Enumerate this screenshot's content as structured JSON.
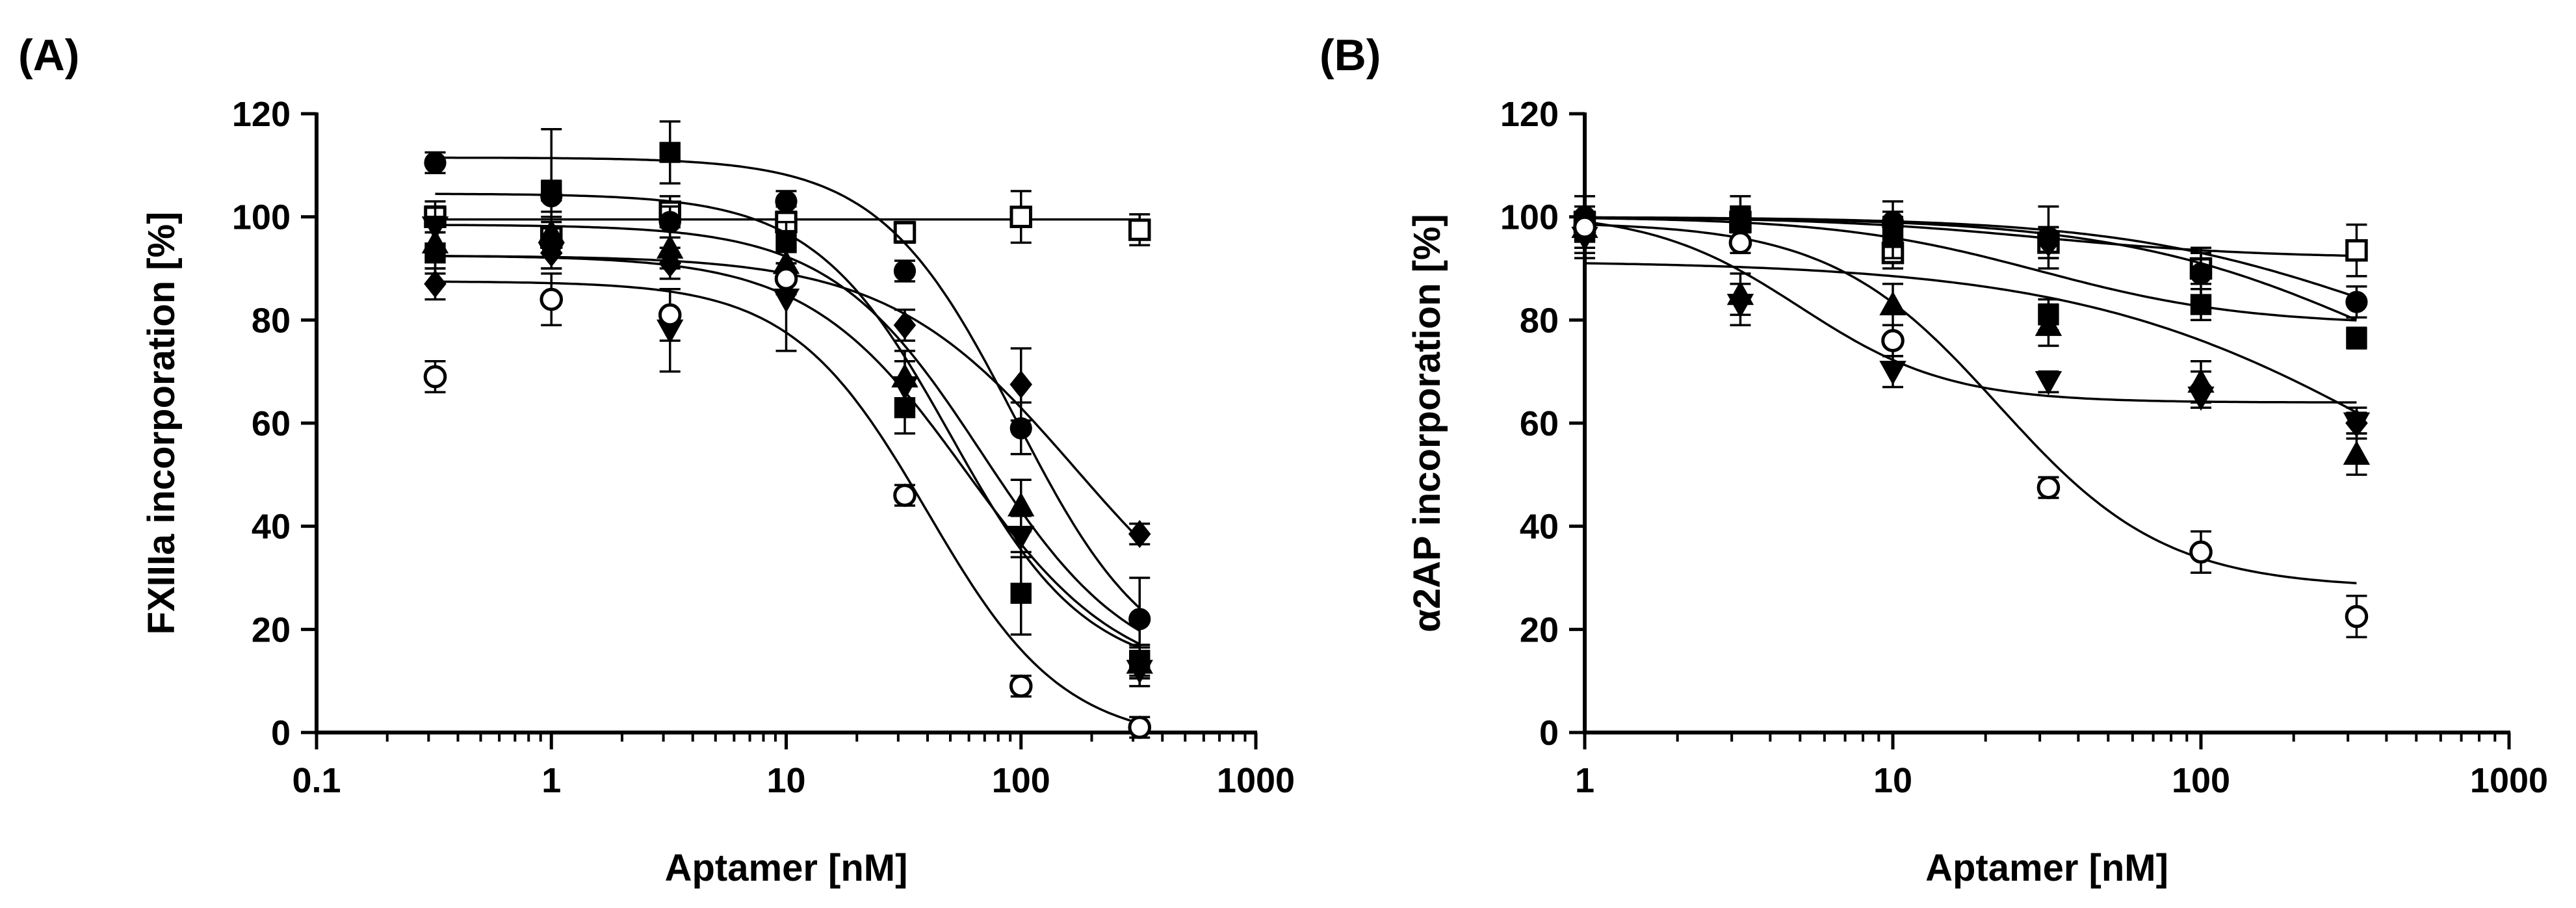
{
  "chart_data": [
    {
      "type": "scatter",
      "panel_label": "(A)",
      "xlabel": "Aptamer [nM]",
      "ylabel": "FXIIIa incorporation  [%]",
      "xscale": "log",
      "xlim": [
        0.1,
        1000
      ],
      "ylim": [
        0,
        120
      ],
      "xticks": [
        0.1,
        1,
        10,
        100,
        1000
      ],
      "xtick_labels": [
        "0.1",
        "1",
        "10",
        "100",
        "1000"
      ],
      "yticks": [
        0,
        20,
        40,
        60,
        80,
        100,
        120
      ],
      "ytick_labels": [
        "0",
        "20",
        "40",
        "60",
        "80",
        "100",
        "120"
      ],
      "series": [
        {
          "name": "open-square",
          "marker": "square-open",
          "points": [
            [
              0.32,
              100,
              3
            ],
            [
              1,
              96,
              3
            ],
            [
              3.2,
              101,
              3
            ],
            [
              10,
              99,
              3
            ],
            [
              32,
              97,
              2
            ],
            [
              100,
              100,
              5
            ],
            [
              320,
              97.5,
              3
            ]
          ],
          "fit": {
            "top": 99.5,
            "bottom": 99.5,
            "ic50": 50,
            "hill": 1
          }
        },
        {
          "name": "filled-circle",
          "marker": "circle-filled",
          "points": [
            [
              0.32,
              110.5,
              2
            ],
            [
              1,
              104,
              3
            ],
            [
              3.2,
              99,
              3
            ],
            [
              10,
              103,
              2
            ],
            [
              32,
              89.5,
              2
            ],
            [
              100,
              59,
              5
            ],
            [
              320,
              22,
              8
            ]
          ],
          "fit": {
            "top": 111.5,
            "bottom": 10,
            "ic50": 95,
            "hill": 1.5
          }
        },
        {
          "name": "filled-square",
          "marker": "square-filled",
          "points": [
            [
              0.32,
              93,
              4
            ],
            [
              1,
              105,
              12
            ],
            [
              3.2,
              112.5,
              6
            ],
            [
              10,
              95,
              4
            ],
            [
              32,
              63,
              5
            ],
            [
              100,
              27,
              8
            ],
            [
              320,
              14,
              3
            ]
          ],
          "fit": {
            "top": 104.5,
            "bottom": 11,
            "ic50": 50,
            "hill": 1.5
          }
        },
        {
          "name": "filled-diamond",
          "marker": "diamond-filled",
          "points": [
            [
              0.32,
              87,
              3
            ],
            [
              1,
              93,
              3
            ],
            [
              3.2,
              91,
              3
            ],
            [
              10,
              88,
              3
            ],
            [
              32,
              79,
              3
            ],
            [
              100,
              67.5,
              7
            ],
            [
              320,
              38.5,
              2
            ]
          ],
          "fit": {
            "top": 92.5,
            "bottom": 10,
            "ic50": 170,
            "hill": 1.1
          }
        },
        {
          "name": "filled-triangle-up",
          "marker": "triangle-up-filled",
          "points": [
            [
              0.32,
              95,
              5
            ],
            [
              1,
              97,
              3
            ],
            [
              3.2,
              94,
              4
            ],
            [
              10,
              91,
              3
            ],
            [
              32,
              69,
              5
            ],
            [
              100,
              44,
              5
            ],
            [
              320,
              13.5,
              3
            ]
          ],
          "fit": {
            "top": 98.5,
            "bottom": 10,
            "ic50": 68,
            "hill": 1.35
          }
        },
        {
          "name": "filled-triangle-down",
          "marker": "triangle-down-filled",
          "points": [
            [
              0.32,
              98,
              4
            ],
            [
              1,
              93,
              3
            ],
            [
              3.2,
              78,
              8
            ],
            [
              10,
              84,
              10
            ],
            [
              32,
              67,
              5
            ],
            [
              100,
              38,
              4
            ],
            [
              320,
              12,
              3
            ]
          ],
          "fit": {
            "top": 92.5,
            "bottom": 9,
            "ic50": 58,
            "hill": 1.3
          }
        },
        {
          "name": "open-circle",
          "marker": "circle-open",
          "points": [
            [
              0.32,
              69,
              3
            ],
            [
              1,
              84,
              5
            ],
            [
              3.2,
              81,
              5
            ],
            [
              10,
              88,
              3
            ],
            [
              32,
              46,
              2
            ],
            [
              100,
              9,
              2
            ],
            [
              320,
              1,
              2
            ]
          ],
          "fit": {
            "top": 87.5,
            "bottom": -2,
            "ic50": 40,
            "hill": 1.5
          }
        }
      ]
    },
    {
      "type": "scatter",
      "panel_label": "(B)",
      "xlabel": "Aptamer [nM]",
      "ylabel": "α2AP incorporation [%]",
      "xscale": "log",
      "xlim": [
        1,
        1000
      ],
      "ylim": [
        0,
        120
      ],
      "xticks": [
        1,
        10,
        100,
        1000
      ],
      "xtick_labels": [
        "1",
        "10",
        "100",
        "1000"
      ],
      "yticks": [
        0,
        20,
        40,
        60,
        80,
        100,
        120
      ],
      "ytick_labels": [
        "0",
        "20",
        "40",
        "60",
        "80",
        "100",
        "120"
      ],
      "series": [
        {
          "name": "open-square",
          "marker": "square-open",
          "points": [
            [
              1,
              99,
              3
            ],
            [
              3.2,
              99,
              3
            ],
            [
              10,
              93,
              3
            ],
            [
              32,
              95,
              3
            ],
            [
              100,
              90,
              3
            ],
            [
              320,
              93.5,
              5
            ]
          ],
          "fit": {
            "top": 100,
            "bottom": 92,
            "ic50": 30,
            "hill": 1.2
          }
        },
        {
          "name": "filled-circle",
          "marker": "circle-filled",
          "points": [
            [
              1,
              100,
              4
            ],
            [
              3.2,
              99,
              3
            ],
            [
              10,
              99,
              4
            ],
            [
              32,
              96,
              6
            ],
            [
              100,
              89,
              5
            ],
            [
              320,
              83.5,
              3
            ]
          ],
          "fit": {
            "top": 100,
            "bottom": 65,
            "ic50": 400,
            "hill": 1.0
          }
        },
        {
          "name": "filled-square",
          "marker": "square-filled",
          "points": [
            [
              1,
              97,
              4
            ],
            [
              3.2,
              100,
              4
            ],
            [
              10,
              96,
              4
            ],
            [
              32,
              81,
              3
            ],
            [
              100,
              83,
              3
            ],
            [
              320,
              76.5,
              2
            ]
          ],
          "fit": {
            "top": 100,
            "bottom": 79,
            "ic50": 30,
            "hill": 1.3
          }
        },
        {
          "name": "filled-diamond",
          "marker": "diamond-filled",
          "points": [
            [
              1,
              99,
              3
            ],
            [
              3.2,
              99,
              3
            ],
            [
              10,
              98,
              3
            ],
            [
              32,
              95,
              3
            ],
            [
              100,
              67,
              3
            ],
            [
              320,
              60,
              3
            ]
          ],
          "fit": {
            "top": 100,
            "bottom": 55,
            "ic50": 400,
            "hill": 1.0
          }
        },
        {
          "name": "filled-triangle-up",
          "marker": "triangle-up-filled",
          "points": [
            [
              1,
              98,
              4
            ],
            [
              3.2,
              85,
              4
            ],
            [
              10,
              83,
              4
            ],
            [
              32,
              79,
              4
            ],
            [
              100,
              68,
              4
            ],
            [
              320,
              54,
              4
            ]
          ],
          "fit": {
            "top": 91.5,
            "bottom": 20,
            "ic50": 500,
            "hill": 0.8
          }
        },
        {
          "name": "filled-triangle-down",
          "marker": "triangle-down-filled",
          "points": [
            [
              1,
              96,
              4
            ],
            [
              3.2,
              83,
              4
            ],
            [
              10,
              70,
              3
            ],
            [
              32,
              68,
              2
            ],
            [
              100,
              65,
              2
            ],
            [
              320,
              60,
              2
            ]
          ],
          "fit": {
            "top": 101,
            "bottom": 64,
            "ic50": 5,
            "hill": 1.8
          }
        },
        {
          "name": "open-circle",
          "marker": "circle-open",
          "points": [
            [
              1,
              98,
              2
            ],
            [
              3.2,
              95,
              2
            ],
            [
              10,
              76,
              3
            ],
            [
              32,
              47.5,
              2
            ],
            [
              100,
              35,
              4
            ],
            [
              320,
              22.5,
              4
            ]
          ],
          "fit": {
            "top": 99,
            "bottom": 28,
            "ic50": 22,
            "hill": 1.6
          }
        }
      ]
    }
  ]
}
